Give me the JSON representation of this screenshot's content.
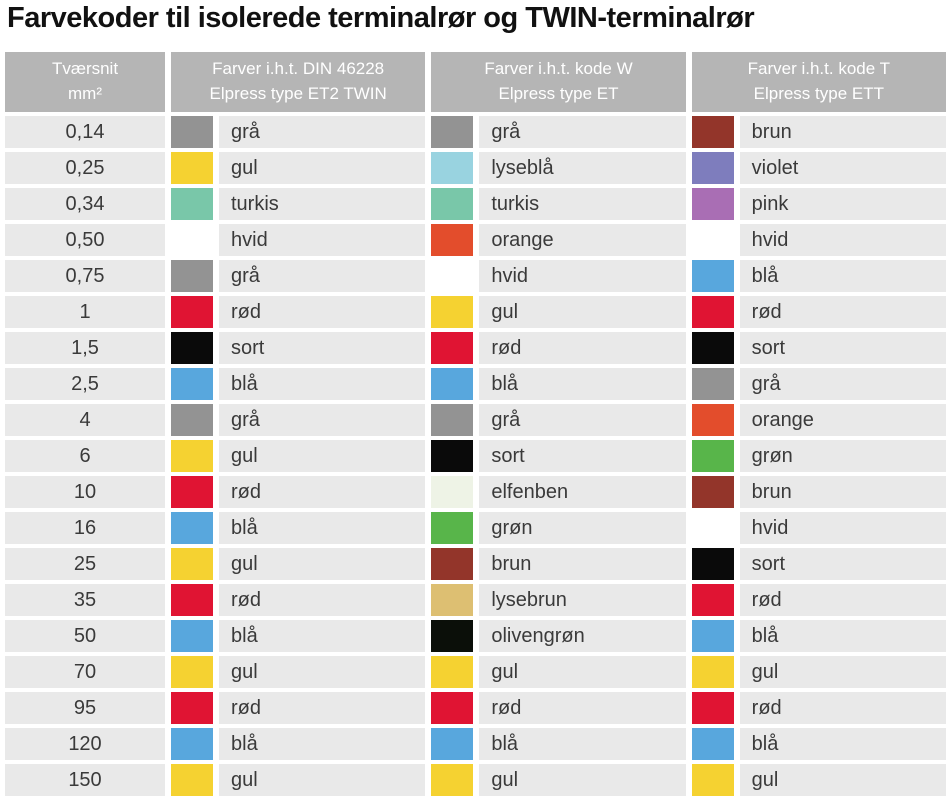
{
  "title": "Farvekoder til isolerede terminalrør og TWIN-terminalrør",
  "table": {
    "headers": [
      {
        "line1": "Tværsnit",
        "line2": "mm²"
      },
      {
        "line1": "Farver i.h.t. DIN 46228",
        "line2": "Elpress type ET2 TWIN"
      },
      {
        "line1": "Farver i.h.t. kode W",
        "line2": "Elpress type ET"
      },
      {
        "line1": "Farver i.h.t. kode T",
        "line2": "Elpress type ETT"
      }
    ],
    "palette": {
      "grå": "#939393",
      "gul": "#f5d231",
      "turkis": "#79c7a9",
      "hvid": "#ffffff",
      "rød": "#e01433",
      "sort": "#0a0a0a",
      "blå": "#58a7dd",
      "lyseblå": "#99d3e0",
      "orange": "#e34d2c",
      "elfenben": "#eef3e6",
      "grøn": "#58b54a",
      "brun": "#93352a",
      "lysebrun": "#ddbf72",
      "olivengrøn": "#0b0f09",
      "violet": "#7e7dbd",
      "pink": "#a96eb4"
    },
    "ui_colors": {
      "header_bg": "#b5b5b5",
      "cell_bg": "#e9e9e9",
      "text": "#3a3a3a"
    },
    "rows": [
      {
        "size": "0,14",
        "din": "grå",
        "w": "grå",
        "t": "brun"
      },
      {
        "size": "0,25",
        "din": "gul",
        "w": "lyseblå",
        "t": "violet"
      },
      {
        "size": "0,34",
        "din": "turkis",
        "w": "turkis",
        "t": "pink"
      },
      {
        "size": "0,50",
        "din": "hvid",
        "w": "orange",
        "t": "hvid"
      },
      {
        "size": "0,75",
        "din": "grå",
        "w": "hvid",
        "t": "blå"
      },
      {
        "size": "1",
        "din": "rød",
        "w": "gul",
        "t": "rød"
      },
      {
        "size": "1,5",
        "din": "sort",
        "w": "rød",
        "t": "sort"
      },
      {
        "size": "2,5",
        "din": "blå",
        "w": "blå",
        "t": "grå"
      },
      {
        "size": "4",
        "din": "grå",
        "w": "grå",
        "t": "orange"
      },
      {
        "size": "6",
        "din": "gul",
        "w": "sort",
        "t": "grøn"
      },
      {
        "size": "10",
        "din": "rød",
        "w": "elfenben",
        "t": "brun"
      },
      {
        "size": "16",
        "din": "blå",
        "w": "grøn",
        "t": "hvid"
      },
      {
        "size": "25",
        "din": "gul",
        "w": "brun",
        "t": "sort"
      },
      {
        "size": "35",
        "din": "rød",
        "w": "lysebrun",
        "t": "rød"
      },
      {
        "size": "50",
        "din": "blå",
        "w": "olivengrøn",
        "t": "blå"
      },
      {
        "size": "70",
        "din": "gul",
        "w": "gul",
        "t": "gul"
      },
      {
        "size": "95",
        "din": "rød",
        "w": "rød",
        "t": "rød"
      },
      {
        "size": "120",
        "din": "blå",
        "w": "blå",
        "t": "blå"
      },
      {
        "size": "150",
        "din": "gul",
        "w": "gul",
        "t": "gul"
      }
    ]
  }
}
